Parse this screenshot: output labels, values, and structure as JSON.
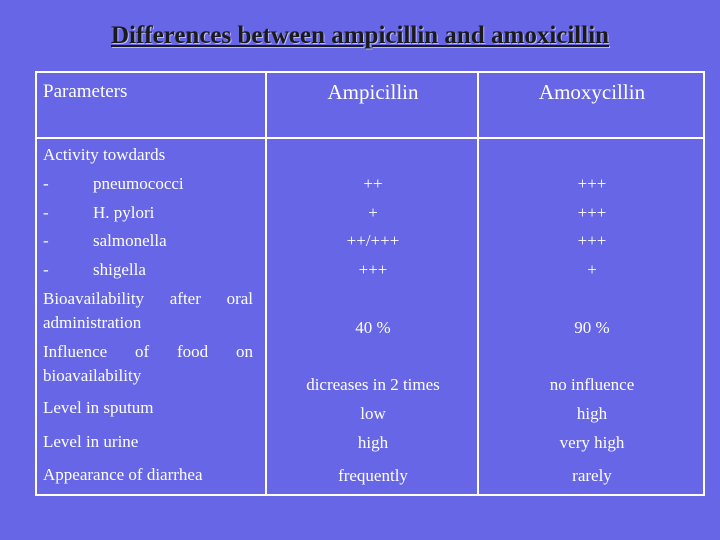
{
  "slide": {
    "title": "Differences between ampicillin and amoxicillin"
  },
  "table": {
    "headers": {
      "parameters": "Parameters",
      "ampicillin": "Ampicillin",
      "amoxycillin": "Amoxycillin"
    },
    "activity_heading": "Activity towdards",
    "activity": [
      {
        "dash": "-",
        "organism": "pneumococci",
        "ampicillin": "++",
        "amoxycillin": "+++"
      },
      {
        "dash": "-",
        "organism": "H. pylori",
        "ampicillin": "+",
        "amoxycillin": "+++"
      },
      {
        "dash": "-",
        "organism": "salmonella",
        "ampicillin": "++/+++",
        "amoxycillin": "+++"
      },
      {
        "dash": "-",
        "organism": "shigella",
        "ampicillin": "+++",
        "amoxycillin": "+"
      }
    ],
    "bioavailability": {
      "label_words_line1": [
        "Bioavailability",
        "after",
        "oral"
      ],
      "label_line2": "administration",
      "ampicillin": "40 %",
      "amoxycillin": "90 %"
    },
    "food_influence": {
      "label_words_line1": [
        "Influence",
        "of",
        "food",
        "on"
      ],
      "label_line2": "bioavailability",
      "ampicillin": "dicreases in 2 times",
      "amoxycillin": "no influence"
    },
    "sputum": {
      "label": "Level in sputum",
      "ampicillin": "low",
      "amoxycillin": "high"
    },
    "urine": {
      "label": "Level in urine",
      "ampicillin": "high",
      "amoxycillin": "very high"
    },
    "diarrhea": {
      "label": "Appearance of diarrhea",
      "ampicillin": "frequently",
      "amoxycillin": "rarely"
    }
  }
}
